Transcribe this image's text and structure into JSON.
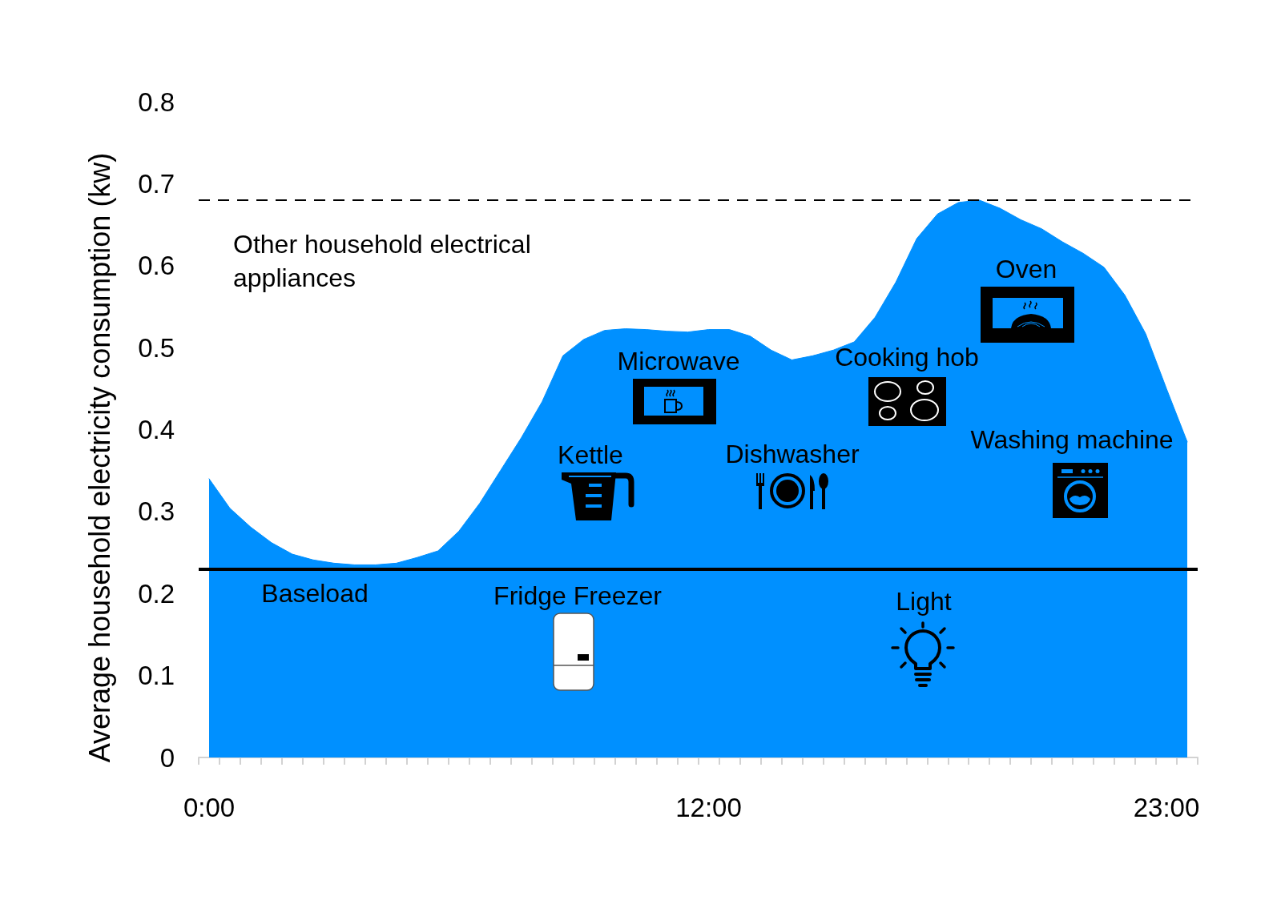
{
  "chart_data": {
    "type": "area",
    "ylabel": "Average household electricity consumption (kw)",
    "categories": [
      "0:00",
      null,
      null,
      null,
      null,
      null,
      null,
      null,
      null,
      null,
      null,
      null,
      null,
      null,
      null,
      null,
      null,
      null,
      null,
      null,
      null,
      null,
      null,
      null,
      "12:00",
      null,
      null,
      null,
      null,
      null,
      null,
      null,
      null,
      null,
      null,
      null,
      null,
      null,
      null,
      null,
      null,
      null,
      null,
      null,
      null,
      null,
      "23:00",
      null
    ],
    "values": [
      0.34,
      0.304,
      0.281,
      0.262,
      0.248,
      0.241,
      0.237,
      0.235,
      0.235,
      0.237,
      0.244,
      0.252,
      0.276,
      0.31,
      0.35,
      0.39,
      0.434,
      0.49,
      0.51,
      0.521,
      0.523,
      0.522,
      0.52,
      0.519,
      0.522,
      0.522,
      0.514,
      0.497,
      0.485,
      0.49,
      0.497,
      0.507,
      0.537,
      0.58,
      0.633,
      0.663,
      0.677,
      0.68,
      0.67,
      0.656,
      0.645,
      0.629,
      0.615,
      0.598,
      0.564,
      0.517,
      0.45,
      0.385
    ],
    "color": "#0090ff",
    "marker": "none",
    "grid": false,
    "ylim": [
      0,
      0.8
    ],
    "yticks": [
      0,
      0.1,
      0.2,
      0.3,
      0.4,
      0.5,
      0.6,
      0.7,
      0.8
    ],
    "ref_lines": [
      {
        "axis": "y",
        "value": 0.235,
        "color": "#000000",
        "line_style": "solid"
      },
      {
        "axis": "y",
        "value": 0.68,
        "color": "#000000",
        "line_style": "dashed"
      }
    ],
    "annotations": [
      "Other household electrical appliances",
      "Oven",
      "Microwave",
      "Cooking hob",
      "Washing machine",
      "Kettle",
      "Dishwasher",
      "Baseload",
      "Fridge Freezer",
      "Light"
    ]
  }
}
